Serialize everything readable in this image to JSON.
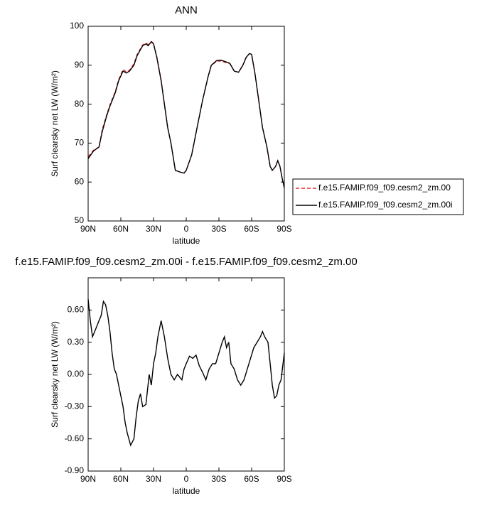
{
  "chart_data": [
    {
      "type": "line",
      "title": "ANN",
      "x_label": "latitude",
      "y_label": "Surf clearsky net LW (W/m²)",
      "x": [
        90,
        85,
        80,
        77,
        73,
        70,
        65,
        62,
        58,
        55,
        52,
        48,
        45,
        40,
        37,
        35,
        32,
        30,
        27,
        23,
        20,
        17,
        14,
        10,
        5,
        2,
        0,
        -5,
        -10,
        -15,
        -20,
        -23,
        -28,
        -32,
        -35,
        -40,
        -44,
        -48,
        -52,
        -55,
        -58,
        -60,
        -63,
        -66,
        -70,
        -74,
        -77,
        -79,
        -82,
        -84,
        -86,
        -88,
        -90
      ],
      "series": [
        {
          "name": "f.e15.FAMIP.f09_f09.cesm2_zm.00",
          "color": "#e8262a",
          "dash": true,
          "values": [
            66.5,
            68.2,
            69,
            73.5,
            77.3,
            79.8,
            83.3,
            86.3,
            88.9,
            88.3,
            88.7,
            90.4,
            92.8,
            95.2,
            95.7,
            95.3,
            96.1,
            95.6,
            92.2,
            86.2,
            80.1,
            74,
            70,
            63,
            62.5,
            62.3,
            63,
            67,
            74,
            81,
            87,
            90,
            91,
            91.1,
            90.8,
            90.4,
            88.5,
            88.2,
            90,
            92,
            93,
            92.8,
            88,
            82,
            74,
            69,
            64,
            63,
            64,
            65.5,
            64,
            61,
            58.5
          ]
        },
        {
          "name": "f.e15.FAMIP.f09_f09.cesm2_zm.00i",
          "color": "#000000",
          "dash": false,
          "values": [
            66,
            68,
            69,
            73,
            77,
            79.5,
            83,
            86,
            88.5,
            88,
            88.5,
            90,
            92.5,
            95,
            95.5,
            95,
            96,
            95.5,
            92,
            86,
            80,
            74,
            70,
            63,
            62.5,
            62.3,
            63,
            67,
            74,
            81,
            87,
            90,
            91.2,
            91.3,
            91,
            90.5,
            88.5,
            88.2,
            90,
            92,
            93,
            92.8,
            88,
            82,
            74,
            69,
            64,
            63,
            64,
            65.5,
            64,
            61,
            58.5
          ]
        }
      ],
      "xlim": [
        90,
        -90
      ],
      "xticks": [
        {
          "value": 90,
          "label": "90N"
        },
        {
          "value": 60,
          "label": "60N"
        },
        {
          "value": 30,
          "label": "30N"
        },
        0,
        {
          "value": -30,
          "label": "30S"
        },
        {
          "value": -60,
          "label": "60S"
        },
        {
          "value": -90,
          "label": "90S"
        }
      ],
      "ylim": [
        50,
        100
      ],
      "yticks": [
        50,
        60,
        70,
        80,
        90,
        100
      ],
      "legend": "right"
    },
    {
      "type": "line",
      "title": "f.e15.FAMIP.f09_f09.cesm2_zm.00i - f.e15.FAMIP.f09_f09.cesm2_zm.00",
      "x_label": "latitude",
      "y_label": "Surf clearsky net LW (W/m²)",
      "x": [
        90,
        88,
        86,
        84,
        82,
        80,
        78,
        76,
        74,
        72,
        70,
        68,
        66,
        64,
        62,
        60,
        58,
        56,
        54,
        51,
        48,
        46,
        44,
        42,
        40,
        37,
        34,
        32,
        30,
        28,
        26,
        23,
        20,
        17,
        14,
        11,
        8,
        4,
        2,
        0,
        -3,
        -6,
        -9,
        -12,
        -15,
        -18,
        -21,
        -24,
        -27,
        -30,
        -33,
        -35,
        -37,
        -39,
        -41,
        -44,
        -47,
        -50,
        -53,
        -56,
        -59,
        -62,
        -65,
        -68,
        -70,
        -72,
        -75,
        -77,
        -79,
        -81,
        -83,
        -85,
        -87,
        -90
      ],
      "series": [
        {
          "color": "#000000",
          "dash": false,
          "values": [
            0.7,
            0.5,
            0.35,
            0.4,
            0.45,
            0.5,
            0.55,
            0.68,
            0.65,
            0.55,
            0.4,
            0.2,
            0.05,
            0.0,
            -0.1,
            -0.2,
            -0.3,
            -0.45,
            -0.55,
            -0.66,
            -0.6,
            -0.4,
            -0.25,
            -0.18,
            -0.3,
            -0.28,
            0.0,
            -0.1,
            0.1,
            0.2,
            0.35,
            0.5,
            0.35,
            0.15,
            0.0,
            -0.05,
            0.0,
            -0.05,
            0.05,
            0.1,
            0.17,
            0.15,
            0.18,
            0.08,
            0.02,
            -0.05,
            0.05,
            0.1,
            0.1,
            0.2,
            0.3,
            0.35,
            0.25,
            0.3,
            0.1,
            0.05,
            -0.05,
            -0.1,
            -0.05,
            0.05,
            0.15,
            0.25,
            0.3,
            0.35,
            0.4,
            0.35,
            0.3,
            0.1,
            -0.1,
            -0.22,
            -0.2,
            -0.1,
            -0.05,
            0.2
          ]
        }
      ],
      "xlim": [
        90,
        -90
      ],
      "xticks": [
        {
          "value": 90,
          "label": "90N"
        },
        {
          "value": 60,
          "label": "60N"
        },
        {
          "value": 30,
          "label": "30N"
        },
        0,
        {
          "value": -30,
          "label": "30S"
        },
        {
          "value": -60,
          "label": "60S"
        },
        {
          "value": -90,
          "label": "90S"
        }
      ],
      "ylim": [
        -0.9,
        0.9
      ],
      "yticks": [
        {
          "value": -0.9,
          "label": "-0.90"
        },
        {
          "value": -0.6,
          "label": "-0.60"
        },
        {
          "value": -0.3,
          "label": "-0.30"
        },
        {
          "value": 0,
          "label": "0.00"
        },
        {
          "value": 0.3,
          "label": "0.30"
        },
        {
          "value": 0.6,
          "label": "0.60"
        }
      ]
    }
  ]
}
